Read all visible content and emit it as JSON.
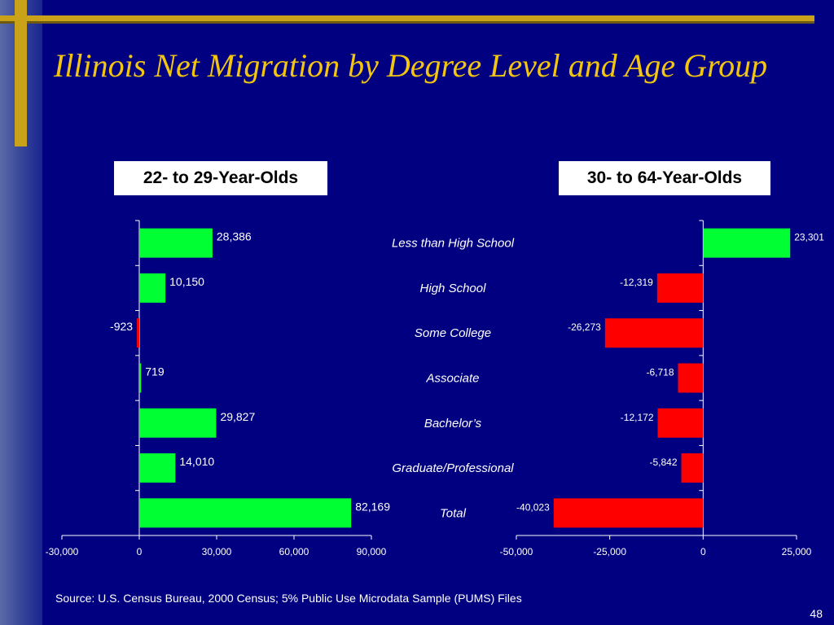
{
  "slide": {
    "title": "Illinois Net Migration by Degree Level and Age Group",
    "source": "Source:  U.S. Census Bureau, 2000 Census; 5% Public Use Microdata Sample (PUMS) Files",
    "page_number": "48"
  },
  "colors": {
    "background": "#000080",
    "accent": "#c9a21a",
    "title": "#f2c511",
    "positive": "#00ff33",
    "negative": "#ff0000"
  },
  "chart_data": [
    {
      "type": "bar",
      "orientation": "horizontal",
      "title": "22- to 29-Year-Olds",
      "categories": [
        "Less than High School",
        "High School",
        "Some College",
        "Associate",
        "Bachelor’s",
        "Graduate/Professional",
        "Total"
      ],
      "values": [
        28386,
        10150,
        -923,
        719,
        29827,
        14010,
        82169
      ],
      "value_labels": [
        "28,386",
        "10,150",
        "-923",
        "719",
        "29,827",
        "14,010",
        "82,169"
      ],
      "xlim": [
        -30000,
        90000
      ],
      "ticks": [
        -30000,
        0,
        30000,
        60000,
        90000
      ],
      "tick_labels": [
        "-30,000",
        "0",
        "30,000",
        "60,000",
        "90,000"
      ],
      "grid": false
    },
    {
      "type": "bar",
      "orientation": "horizontal",
      "title": "30- to 64-Year-Olds",
      "categories": [
        "Less than High School",
        "High School",
        "Some College",
        "Associate",
        "Bachelor’s",
        "Graduate/Professional",
        "Total"
      ],
      "values": [
        23301,
        -12319,
        -26273,
        -6718,
        -12172,
        -5842,
        -40023
      ],
      "value_labels": [
        "23,301",
        "-12,319",
        "-26,273",
        "-6,718",
        "-12,172",
        "-5,842",
        "-40,023"
      ],
      "xlim": [
        -50000,
        25000
      ],
      "ticks": [
        -50000,
        -25000,
        0,
        25000
      ],
      "tick_labels": [
        "-50,000",
        "-25,000",
        "0",
        "25,000"
      ],
      "grid": false
    }
  ]
}
